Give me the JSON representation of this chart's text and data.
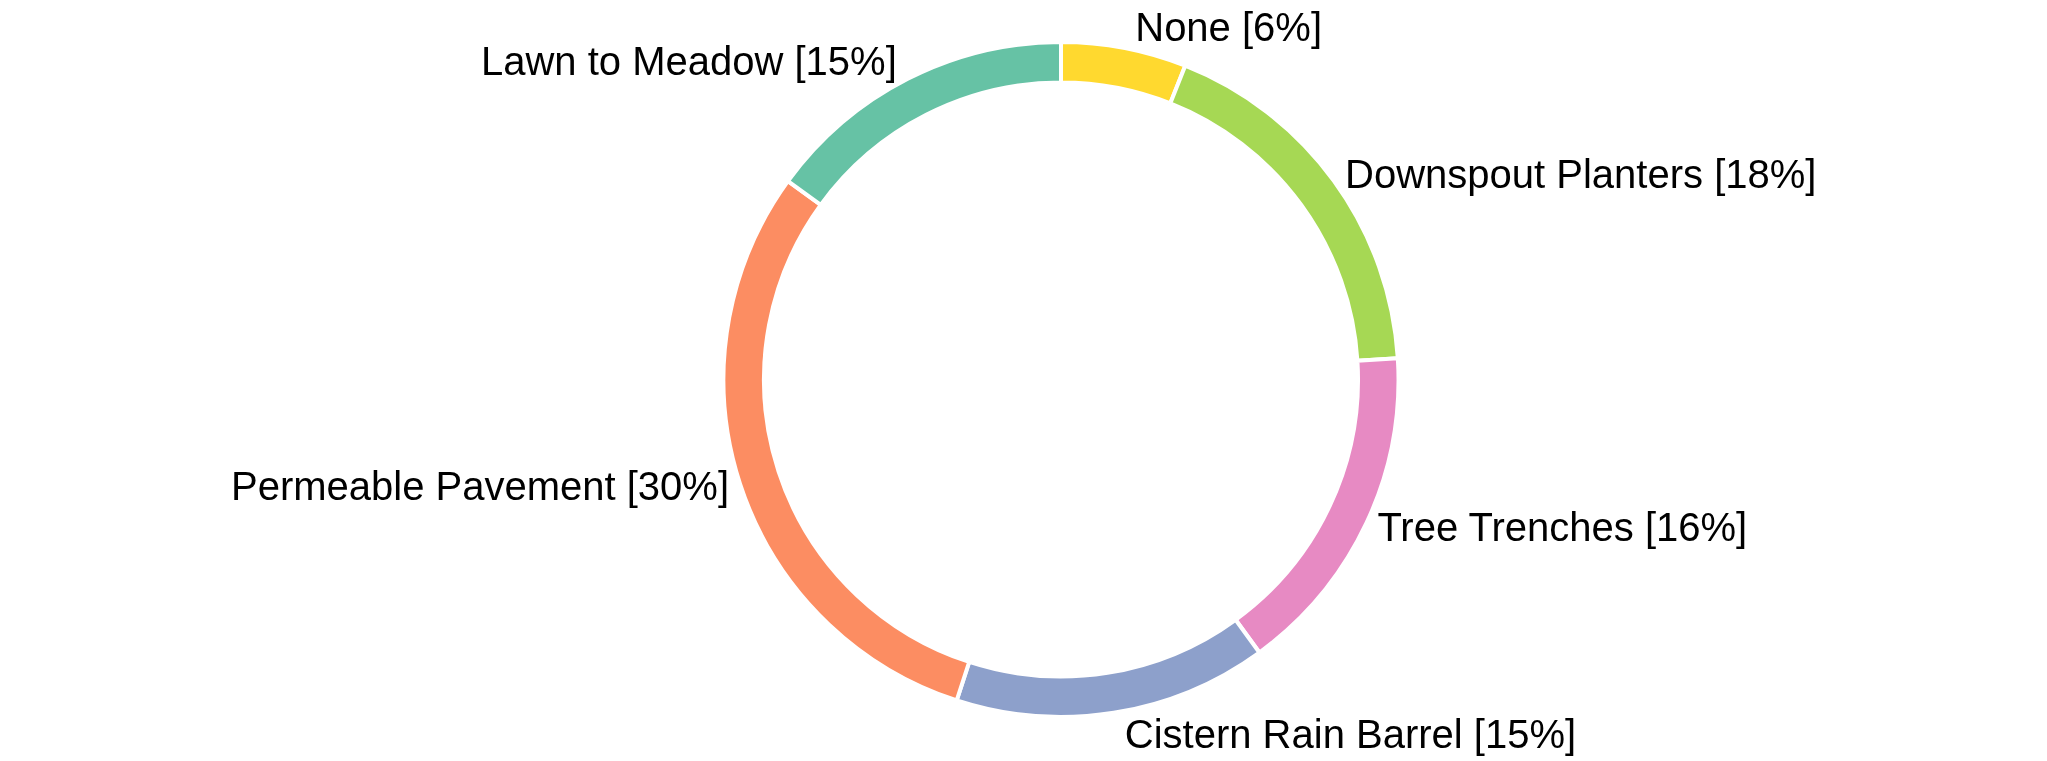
{
  "chart_data": {
    "type": "donut",
    "categories": [
      "None",
      "Downspout Planters",
      "Tree Trenches",
      "Cistern Rain Barrel",
      "Permeable Pavement",
      "Lawn to Meadow"
    ],
    "values": [
      6,
      18,
      16,
      15,
      30,
      15
    ],
    "value_labels": [
      "[6%]",
      "[18%]",
      "[16%]",
      "[15%]",
      "[30%]",
      "[15%]"
    ],
    "colors": [
      "#ffd92f",
      "#a6d854",
      "#e78ac3",
      "#8da0cb",
      "#fc8d62",
      "#66c2a5"
    ],
    "legend": false
  }
}
